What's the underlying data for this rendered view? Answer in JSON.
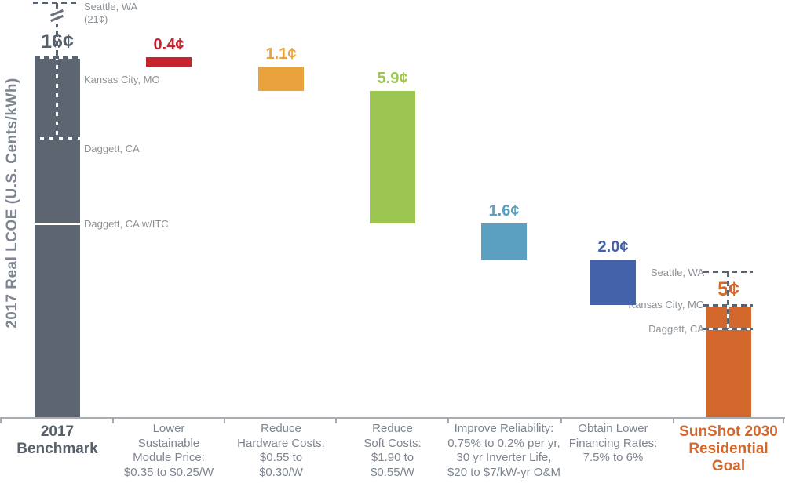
{
  "palette": {
    "axis": "#a8adb4",
    "dash_line": "#5a6470",
    "marker_text": "#8b9196",
    "category_text": "#7e8590",
    "benchmark_gray": "#5d6570",
    "module_red": "#c8242f",
    "hardware_orange": "#eaa33c",
    "soft_green": "#9cc551",
    "reliability_blue": "#5b9fc1",
    "financing_blue": "#4361a8",
    "goal_orange": "#d4682c"
  },
  "chart_data": {
    "type": "bar",
    "subtype": "waterfall",
    "ylabel": "2017 Real LCOE (U.S. Cents/kWh)",
    "unit": "U.S. cents per kWh",
    "ylim": [
      0,
      16
    ],
    "y_axis_break": "break symbol between 16¢ bar top and off-chart 21¢ Seattle marker",
    "grid": false,
    "legend": "none",
    "categories": [
      "2017 Benchmark",
      "Lower Sustainable Module Price: $0.35 to $0.25/W",
      "Reduce Hardware Costs: $0.55 to $0.30/W",
      "Reduce Soft Costs: $1.90 to $0.55/W",
      "Improve Reliability: 0.75% to 0.2% per yr, 30 yr Inverter Life, $20 to $7/kW-yr O&M",
      "Obtain Lower Financing Rates: 7.5% to 6%",
      "SunShot 2030 Residential Goal"
    ],
    "values": [
      16,
      0.4,
      1.1,
      5.9,
      1.6,
      2.0,
      5
    ],
    "columns": [
      {
        "label": "2017\nBenchmark",
        "role": "total",
        "value": 16,
        "value_label": "16¢",
        "color": "#5d6570",
        "value_color": "#57606a",
        "label_color": "#57606a",
        "label_bold": true
      },
      {
        "label": "Lower\nSustainable\nModule Price:\n$0.35 to $0.25/W",
        "role": "decrease",
        "value": 0.4,
        "value_label": "0.4¢",
        "color": "#c8242f"
      },
      {
        "label": "Reduce\nHardware Costs:\n$0.55 to\n$0.30/W",
        "role": "decrease",
        "value": 1.1,
        "value_label": "1.1¢",
        "color": "#eaa33c"
      },
      {
        "label": "Reduce\nSoft Costs:\n$1.90 to\n$0.55/W",
        "role": "decrease",
        "value": 5.9,
        "value_label": "5.9¢",
        "color": "#9cc551"
      },
      {
        "label": "Improve Reliability:\n0.75% to 0.2% per yr,\n30 yr Inverter Life,\n$20 to $7/kW-yr O&M",
        "role": "decrease",
        "value": 1.6,
        "value_label": "1.6¢",
        "color": "#5b9fc1"
      },
      {
        "label": "Obtain Lower\nFinancing Rates:\n7.5% to 6%",
        "role": "decrease",
        "value": 2.0,
        "value_label": "2.0¢",
        "color": "#4361a8"
      },
      {
        "label": "SunShot 2030\nResidential\nGoal",
        "role": "total",
        "value": 5,
        "value_label": "5¢",
        "color": "#d4682c",
        "value_color": "#d4682c",
        "label_color": "#d4682c",
        "label_bold": true
      }
    ],
    "benchmark_markers": [
      {
        "label": "Seattle, WA",
        "note": "(21¢)",
        "cents": 21,
        "off_chart": true,
        "style": "dashed"
      },
      {
        "label": "Kansas City, MO",
        "cents": 16,
        "style": "bartop-dashed"
      },
      {
        "label": "Daggett, CA",
        "cents": 12.4,
        "style": "dashed"
      },
      {
        "label": "Daggett, CA w/ITC",
        "cents": 8.6,
        "style": "solid"
      }
    ],
    "goal_markers": [
      {
        "label": "Seattle, WA",
        "cents": 6.5,
        "style": "dashed"
      },
      {
        "label": "Kansas City, MO",
        "cents": 5,
        "style": "bartop-dashed"
      },
      {
        "label": "Daggett, CA",
        "cents": 3.95,
        "style": "dashed"
      }
    ]
  }
}
